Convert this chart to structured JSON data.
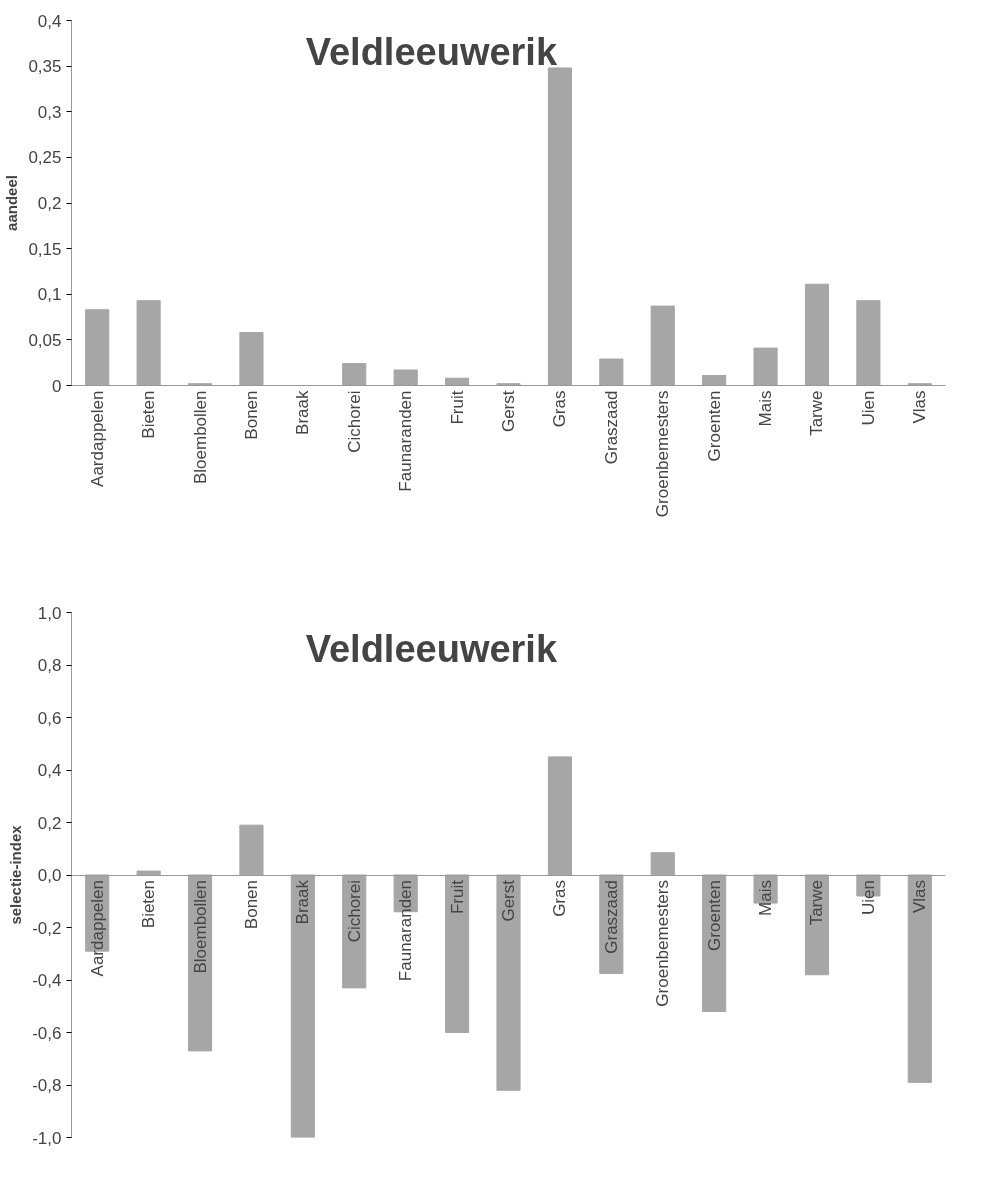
{
  "chart_data": [
    {
      "type": "bar",
      "title": "Veldleeuwerik",
      "ylabel": "aandeel",
      "color": "#a6a6a6",
      "grid": false,
      "categories": [
        "Aardappelen",
        "Bieten",
        "Bloembollen",
        "Bonen",
        "Braak",
        "Cichorei",
        "Faunaranden",
        "Fruit",
        "Gerst",
        "Gras",
        "Graszaad",
        "Groenbemesters",
        "Groenten",
        "Mais",
        "Tarwe",
        "Uien",
        "Vlas"
      ],
      "values": [
        0.083,
        0.093,
        0.002,
        0.058,
        0,
        0.024,
        0.017,
        0.008,
        0.002,
        0.348,
        0.029,
        0.087,
        0.011,
        0.041,
        0.111,
        0.093,
        0.002
      ],
      "ylim": [
        0,
        0.4
      ],
      "yticks": [
        {
          "value": 0,
          "label": "0"
        },
        {
          "value": 0.05,
          "label": "0,05"
        },
        {
          "value": 0.1,
          "label": "0,1"
        },
        {
          "value": 0.15,
          "label": "0,15"
        },
        {
          "value": 0.2,
          "label": "0,2"
        },
        {
          "value": 0.25,
          "label": "0,25"
        },
        {
          "value": 0.3,
          "label": "0,3"
        },
        {
          "value": 0.35,
          "label": "0,35"
        },
        {
          "value": 0.4,
          "label": "0,4"
        }
      ]
    },
    {
      "type": "bar",
      "title": "Veldleeuwerik",
      "ylabel": "selectie-index",
      "color": "#a6a6a6",
      "grid": false,
      "categories": [
        "Aardappelen",
        "Bieten",
        "Bloembollen",
        "Bonen",
        "Braak",
        "Cichorei",
        "Faunaranden",
        "Fruit",
        "Gerst",
        "Gras",
        "Graszaad",
        "Groenbemesters",
        "Groenten",
        "Mais",
        "Tarwe",
        "Uien",
        "Vlas"
      ],
      "values": [
        -0.29,
        0.015,
        -0.67,
        0.19,
        -1.0,
        -0.43,
        -0.14,
        -0.6,
        -0.82,
        0.45,
        -0.375,
        0.085,
        -0.52,
        -0.107,
        -0.38,
        -0.08,
        -0.79
      ],
      "ylim": [
        -1.0,
        1.0
      ],
      "yticks": [
        {
          "value": -1.0,
          "label": "-1,0"
        },
        {
          "value": -0.8,
          "label": "-0,8"
        },
        {
          "value": -0.6,
          "label": "-0,6"
        },
        {
          "value": -0.4,
          "label": "-0,4"
        },
        {
          "value": -0.2,
          "label": "-0,2"
        },
        {
          "value": 0,
          "label": "0,0"
        },
        {
          "value": 0.2,
          "label": "0,2"
        },
        {
          "value": 0.4,
          "label": "0,4"
        },
        {
          "value": 0.6,
          "label": "0,6"
        },
        {
          "value": 0.8,
          "label": "0,8"
        },
        {
          "value": 1.0,
          "label": "1,0"
        }
      ]
    }
  ]
}
